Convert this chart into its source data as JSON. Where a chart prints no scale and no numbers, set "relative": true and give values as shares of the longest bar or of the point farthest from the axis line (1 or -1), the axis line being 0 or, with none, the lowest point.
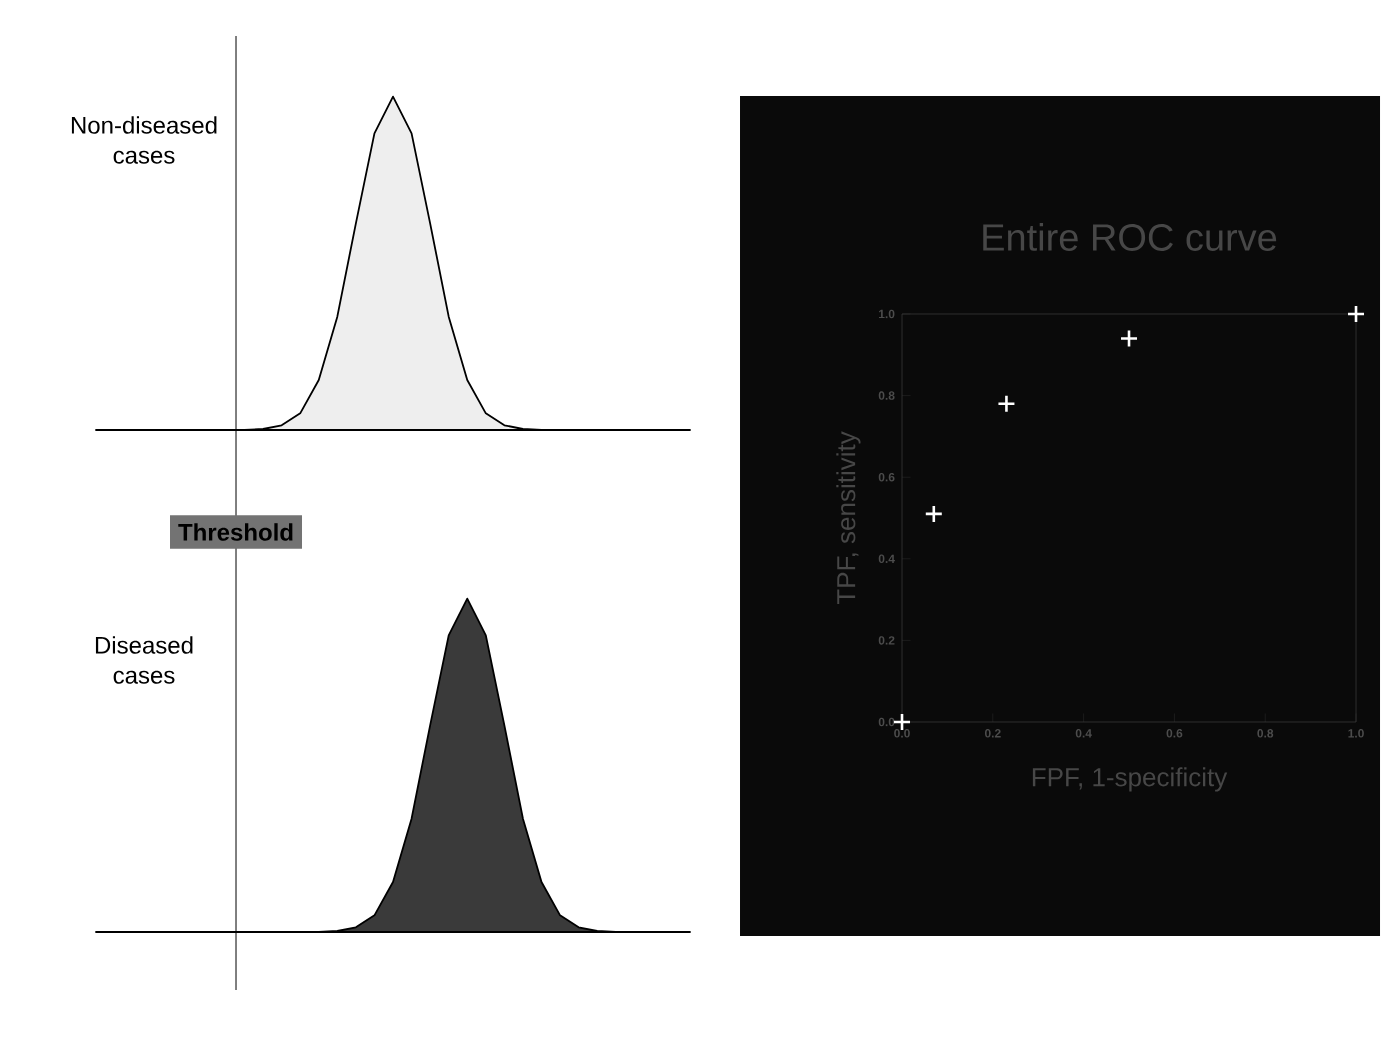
{
  "chart_data": [
    {
      "type": "area",
      "relative": true,
      "annotations": [
        "Non-diseased cases",
        "Threshold"
      ],
      "categories": [
        null,
        null,
        null,
        null,
        null,
        null,
        null,
        null,
        null,
        null,
        null,
        null,
        null,
        null,
        null,
        null,
        null,
        null,
        null,
        null,
        null,
        null,
        null,
        null,
        null,
        null,
        null,
        null,
        null,
        null,
        null,
        null,
        null
      ],
      "series": [
        {
          "color": "#eeeeee",
          "values": [
            0,
            0,
            0,
            0,
            0,
            0,
            0,
            0,
            0,
            0.003,
            0.014,
            0.05,
            0.15,
            0.34,
            0.62,
            0.89,
            1,
            0.89,
            0.62,
            0.34,
            0.15,
            0.05,
            0.014,
            0.003,
            0,
            0,
            0,
            0,
            0,
            0,
            0,
            0,
            0
          ]
        }
      ]
    },
    {
      "type": "area",
      "relative": true,
      "annotations": [
        "Diseased cases"
      ],
      "categories": [
        null,
        null,
        null,
        null,
        null,
        null,
        null,
        null,
        null,
        null,
        null,
        null,
        null,
        null,
        null,
        null,
        null,
        null,
        null,
        null,
        null,
        null,
        null,
        null,
        null,
        null,
        null,
        null,
        null,
        null,
        null,
        null,
        null
      ],
      "series": [
        {
          "color": "#3a3a3a",
          "values": [
            0,
            0,
            0,
            0,
            0,
            0,
            0,
            0,
            0,
            0,
            0,
            0,
            0,
            0.003,
            0.014,
            0.05,
            0.15,
            0.34,
            0.62,
            0.89,
            1,
            0.89,
            0.62,
            0.34,
            0.15,
            0.05,
            0.014,
            0.003,
            0,
            0,
            0,
            0,
            0
          ]
        }
      ]
    },
    {
      "type": "scatter",
      "title": "Entire ROC curve",
      "xlabel": "FPF, 1-specificity",
      "ylabel": "TPF, sensitivity",
      "marker": "cross",
      "x": [
        0,
        0.07,
        0.23,
        0.5,
        1
      ],
      "series": [
        {
          "color": "#ffffff",
          "values": [
            0,
            0.51,
            0.78,
            0.94,
            1
          ]
        }
      ],
      "xlim": [
        0,
        1
      ],
      "ylim": [
        0,
        1
      ],
      "xticks": [
        {
          "value": 0,
          "label": "0.0"
        },
        {
          "value": 0.2,
          "label": "0.2"
        },
        {
          "value": 0.4,
          "label": "0.4"
        },
        {
          "value": 0.6,
          "label": "0.6"
        },
        {
          "value": 0.8,
          "label": "0.8"
        },
        {
          "value": 1,
          "label": "1.0"
        }
      ],
      "yticks": [
        {
          "value": 0,
          "label": "0.0"
        },
        {
          "value": 0.2,
          "label": "0.2"
        },
        {
          "value": 0.4,
          "label": "0.4"
        },
        {
          "value": 0.6,
          "label": "0.6"
        },
        {
          "value": 0.8,
          "label": "0.8"
        },
        {
          "value": 1,
          "label": "1.0"
        }
      ]
    }
  ]
}
